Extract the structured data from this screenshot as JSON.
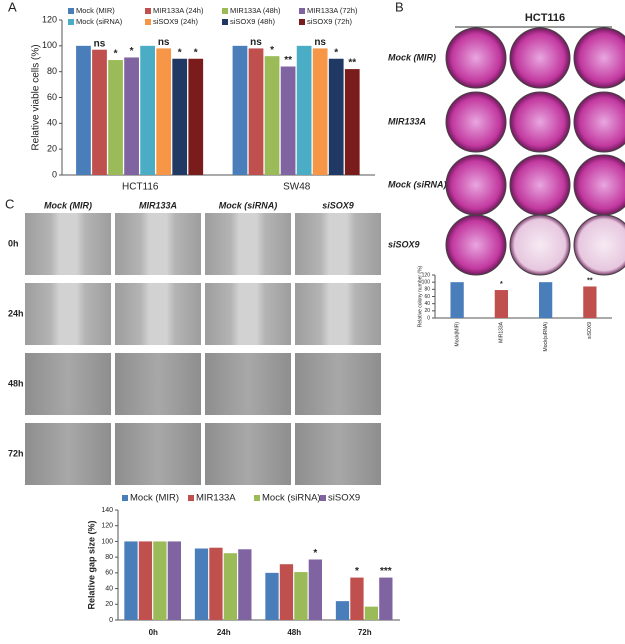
{
  "panels": {
    "a": "A",
    "b": "B",
    "c": "C"
  },
  "colony_assay": {
    "title": "HCT116",
    "rows": [
      "Mock (MIR)",
      "MIR133A",
      "Mock (siRNA)",
      "siSOX9"
    ]
  },
  "wound_healing": {
    "columns": [
      "Mock (MIR)",
      "MIR133A",
      "Mock (siRNA)",
      "siSOX9"
    ],
    "rows": [
      "0h",
      "24h",
      "48h",
      "72h"
    ]
  },
  "chart_data": [
    {
      "type": "bar",
      "y_label": "Relative viable cells (%)",
      "categories": [
        "HCT116",
        "SW48"
      ],
      "ylim": [
        0,
        120
      ],
      "yticks": [
        0,
        20,
        40,
        60,
        80,
        100,
        120
      ],
      "grid": false,
      "series": [
        {
          "name": "Mock (MIR)",
          "color": "#4a7ebb",
          "values": [
            100,
            100
          ],
          "annotations": [
            null,
            null
          ]
        },
        {
          "name": "MIR133A (24h)",
          "color": "#c0504d",
          "values": [
            97,
            98
          ],
          "annotations": [
            "ns",
            "ns"
          ]
        },
        {
          "name": "MIR133A (48h)",
          "color": "#9bbb59",
          "values": [
            89,
            92
          ],
          "annotations": [
            "*",
            "*"
          ]
        },
        {
          "name": "MIR133A (72h)",
          "color": "#8064a2",
          "values": [
            91,
            84
          ],
          "annotations": [
            "*",
            "**"
          ]
        },
        {
          "name": "Mock (siRNA)",
          "color": "#4bacc6",
          "values": [
            100,
            100
          ],
          "annotations": [
            null,
            null
          ]
        },
        {
          "name": "siSOX9 (24h)",
          "color": "#f79646",
          "values": [
            98,
            98
          ],
          "annotations": [
            "ns",
            "ns"
          ]
        },
        {
          "name": "siSOX9 (48h)",
          "color": "#1f3864",
          "values": [
            90,
            90
          ],
          "annotations": [
            "*",
            "*"
          ]
        },
        {
          "name": "siSOX9 (72h)",
          "color": "#7b1c1c",
          "values": [
            90,
            82
          ],
          "annotations": [
            "*",
            "**"
          ]
        }
      ]
    },
    {
      "type": "bar",
      "y_label": "Relative colony number (%)",
      "categories": [
        "Mock(MIR)",
        "MIR133A",
        "Mock(siRNA)",
        "siSOX9"
      ],
      "values": [
        100,
        78,
        100,
        88
      ],
      "colors": [
        "#4a7ebb",
        "#c0504d",
        "#4a7ebb",
        "#c0504d"
      ],
      "annotations": [
        null,
        "*",
        null,
        "**"
      ],
      "ylim": [
        0,
        120
      ],
      "yticks": [
        0,
        20,
        40,
        60,
        80,
        100,
        120
      ],
      "grid": false
    },
    {
      "type": "bar",
      "y_label": "Relative gap size (%)",
      "categories": [
        "0h",
        "24h",
        "48h",
        "72h"
      ],
      "ylim": [
        0,
        140
      ],
      "yticks": [
        0,
        20,
        40,
        60,
        80,
        100,
        120,
        140
      ],
      "grid": false,
      "series": [
        {
          "name": "Mock (MIR)",
          "color": "#4a7ebb",
          "values": [
            100,
            91,
            60,
            24
          ],
          "annotations": [
            null,
            null,
            null,
            null
          ]
        },
        {
          "name": "MIR133A",
          "color": "#c0504d",
          "values": [
            100,
            92,
            71,
            54
          ],
          "annotations": [
            null,
            null,
            null,
            "*"
          ]
        },
        {
          "name": "Mock (siRNA)",
          "color": "#9bbb59",
          "values": [
            100,
            85,
            61,
            17
          ],
          "annotations": [
            null,
            null,
            null,
            null
          ]
        },
        {
          "name": "siSOX9",
          "color": "#8064a2",
          "values": [
            100,
            90,
            77,
            54
          ],
          "annotations": [
            null,
            null,
            "*",
            "***"
          ]
        }
      ]
    }
  ]
}
